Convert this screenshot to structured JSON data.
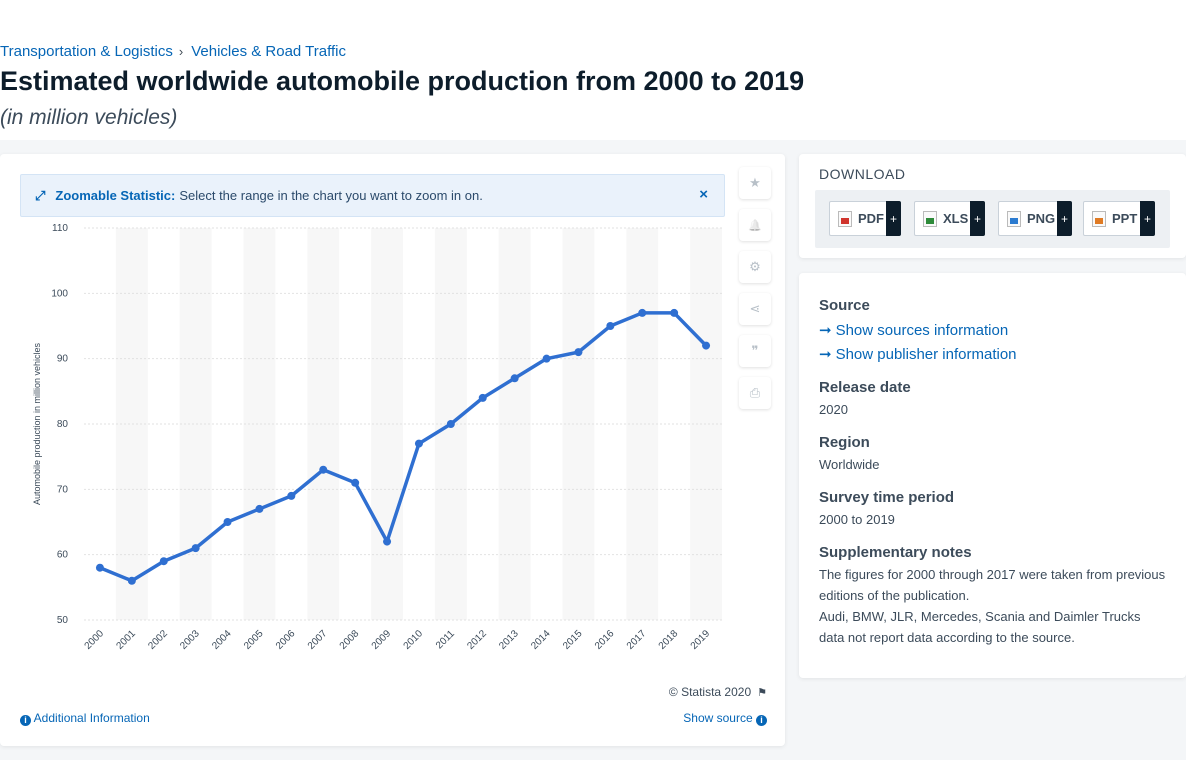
{
  "breadcrumb": {
    "items": [
      "Transportation & Logistics",
      "Vehicles & Road Traffic"
    ],
    "separator": "›"
  },
  "page": {
    "title": "Estimated worldwide automobile production from 2000 to 2019",
    "subtitle": "(in million vehicles)"
  },
  "zoom_banner": {
    "label": "Zoomable Statistic:",
    "text": "Select the range in the chart you want to zoom in on.",
    "close": "×"
  },
  "tools": [
    {
      "name": "favorite-star-icon",
      "glyph": "★"
    },
    {
      "name": "notification-bell-icon",
      "glyph": "🔔"
    },
    {
      "name": "settings-gear-icon",
      "glyph": "⚙"
    },
    {
      "name": "share-icon",
      "glyph": "⋖"
    },
    {
      "name": "cite-quote-icon",
      "glyph": "❞"
    },
    {
      "name": "print-icon",
      "glyph": "⎙"
    }
  ],
  "chart_data": {
    "type": "line",
    "x": [
      "2000",
      "2001",
      "2002",
      "2003",
      "2004",
      "2005",
      "2006",
      "2007",
      "2008",
      "2009",
      "2010",
      "2011",
      "2012",
      "2013",
      "2014",
      "2015",
      "2016",
      "2017",
      "2018",
      "2019"
    ],
    "series": [
      {
        "values": [
          58,
          56,
          59,
          61,
          65,
          67,
          69,
          73,
          71,
          62,
          77,
          80,
          84,
          87,
          90,
          91,
          95,
          97,
          97,
          92
        ]
      }
    ],
    "ylabel": "Automobile production in million vehicles",
    "xlabel": "",
    "ylim": [
      50,
      110
    ],
    "yticks": [
      50,
      60,
      70,
      80,
      90,
      100,
      110
    ],
    "grid": true,
    "line_color": "#2f6fd1"
  },
  "chart_footer": {
    "copyright": "© Statista 2020",
    "additional_info": "Additional Information",
    "show_source": "Show source"
  },
  "download": {
    "title": "DOWNLOAD",
    "formats": [
      "PDF",
      "XLS",
      "PNG",
      "PPT"
    ],
    "plus": "+"
  },
  "meta": {
    "source_label": "Source",
    "show_sources": "Show sources information",
    "show_publisher": "Show publisher information",
    "release_label": "Release date",
    "release_value": "2020",
    "region_label": "Region",
    "region_value": "Worldwide",
    "survey_label": "Survey time period",
    "survey_value": "2000 to 2019",
    "notes_label": "Supplementary notes",
    "notes_line1": "The figures for 2000 through 2017 were taken from previous editions of the publication.",
    "notes_line2": "Audi, BMW, JLR, Mercedes, Scania and Daimler Trucks data not report data according to the source."
  }
}
